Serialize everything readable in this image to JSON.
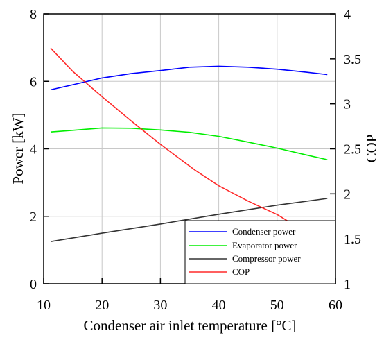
{
  "chart_data": {
    "type": "line",
    "xlabel": "Condenser air inlet temperature [°C]",
    "ylabel": "Power [kW]",
    "y2label": "COP",
    "xlim": [
      10,
      60
    ],
    "ylim": [
      0,
      8
    ],
    "y2lim": [
      1,
      4
    ],
    "grid": true,
    "legend_position": "bottom-right",
    "x_ticks": [
      "10",
      "20",
      "30",
      "40",
      "50",
      "60"
    ],
    "y_ticks": [
      "0",
      "2",
      "4",
      "6",
      "8"
    ],
    "y2_ticks": [
      "1",
      "1.5",
      "2",
      "2.5",
      "3",
      "3.5",
      "4"
    ],
    "series": [
      {
        "name": "Condenser power",
        "axis": "left",
        "color": "#0000ff",
        "x": [
          11.2,
          15,
          20,
          25,
          30,
          35,
          40,
          45,
          50,
          55,
          58.6
        ],
        "values": [
          5.75,
          5.9,
          6.1,
          6.23,
          6.32,
          6.42,
          6.45,
          6.42,
          6.36,
          6.27,
          6.2
        ]
      },
      {
        "name": "Evaporator power",
        "axis": "left",
        "color": "#00ee00",
        "x": [
          11.2,
          15,
          20,
          25,
          30,
          35,
          40,
          45,
          50,
          55,
          58.6
        ],
        "values": [
          4.5,
          4.55,
          4.62,
          4.61,
          4.56,
          4.49,
          4.37,
          4.2,
          4.02,
          3.82,
          3.68
        ]
      },
      {
        "name": "Compressor power",
        "axis": "left",
        "color": "#333333",
        "x": [
          11.2,
          20,
          30,
          40,
          50,
          58.6
        ],
        "values": [
          1.25,
          1.5,
          1.77,
          2.06,
          2.33,
          2.53
        ]
      },
      {
        "name": "COP",
        "axis": "right",
        "color": "#ff2a2a",
        "x": [
          11.2,
          15,
          20,
          25,
          30,
          36,
          40,
          45,
          50,
          52.5
        ],
        "values": [
          3.62,
          3.36,
          3.08,
          2.81,
          2.55,
          2.26,
          2.09,
          1.92,
          1.77,
          1.67
        ]
      }
    ]
  }
}
